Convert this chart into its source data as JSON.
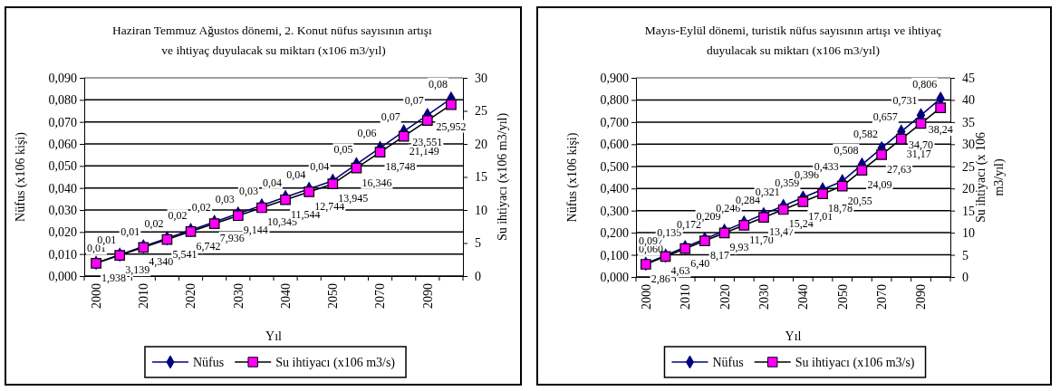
{
  "chart_data": [
    {
      "type": "line",
      "title": "Haziran Temmuz Ağustos  dönemi, 2. Konut  nüfus sayısının artışı  ve ihtiyaç duyulacak su miktarı (x106 m3/yıl)",
      "xlabel": "Yıl",
      "ylabel": "Nüfus (x106 kişi)",
      "y2label": "Su ihtiyacı (x106 m3/yıl)",
      "categories": [
        "2000",
        null,
        "2010",
        null,
        "2020",
        null,
        "2030",
        null,
        "2040",
        null,
        "2050",
        null,
        "2070",
        null,
        "2090",
        null
      ],
      "series": [
        {
          "name": "Nüfus",
          "color": "#000080",
          "marker": "diamond",
          "values": [
            0.006,
            0.0097,
            0.0135,
            0.0172,
            0.0209,
            0.0246,
            0.0284,
            0.0321,
            0.0359,
            0.0396,
            0.0433,
            0.0508,
            0.0582,
            0.0657,
            0.0731,
            0.0806
          ],
          "value_labels": [
            "0,01",
            "0,01",
            "0,01",
            "0,02",
            "0,02",
            "0,02",
            "0,03",
            "0,03",
            "0,04",
            "0,04",
            "0,04",
            "0,05",
            "0,06",
            "0,07",
            "0,07",
            "0,08"
          ]
        },
        {
          "name": "Su ihtiyacı (x106 m3/s)",
          "color": "#ff00ff",
          "marker": "square",
          "axis": "y2",
          "values": [
            1.938,
            3.139,
            4.34,
            5.541,
            6.742,
            7.936,
            9.144,
            10.345,
            11.544,
            12.744,
            13.945,
            16.346,
            18.748,
            21.149,
            23.551,
            25.952
          ],
          "value_labels": [
            "1,938",
            "3,139",
            "4,340",
            "5,541",
            "6,742",
            "7,936",
            "9,144",
            "10,345",
            "11,544",
            "12,744",
            "13,945",
            "16,346",
            "18,748",
            "21,149",
            "23,551",
            "25,952"
          ]
        }
      ],
      "ylim": [
        0,
        0.09
      ],
      "yticks": [
        {
          "value": 0,
          "label": "0,000"
        },
        {
          "value": 0.01,
          "label": "0,010"
        },
        {
          "value": 0.02,
          "label": "0,020"
        },
        {
          "value": 0.03,
          "label": "0,030"
        },
        {
          "value": 0.04,
          "label": "0,040"
        },
        {
          "value": 0.05,
          "label": "0,050"
        },
        {
          "value": 0.06,
          "label": "0,060"
        },
        {
          "value": 0.07,
          "label": "0,070"
        },
        {
          "value": 0.08,
          "label": "0,080"
        },
        {
          "value": 0.09,
          "label": "0,090"
        }
      ],
      "y2lim": [
        0,
        30
      ],
      "y2ticks": [
        0,
        5,
        10,
        15,
        20,
        25,
        30
      ],
      "grid": "y",
      "legend": "bottom"
    },
    {
      "type": "line",
      "title": "Mayıs-Eylül dönemi, turistik nüfus sayısının artışı  ve ihtiyaç duyulacak su miktarı (x106 m3/yıl)",
      "xlabel": "Yıl",
      "ylabel": "Nüfus (x106 kişi)",
      "y2label": "Su ihtiyacı (x 106 m3/yıl)",
      "categories": [
        "2000",
        null,
        "2010",
        null,
        "2020",
        null,
        "2030",
        null,
        "2040",
        null,
        "2050",
        null,
        "2070",
        null,
        "2090",
        null
      ],
      "series": [
        {
          "name": "Nüfus",
          "color": "#000080",
          "marker": "diamond",
          "values": [
            0.06,
            0.097,
            0.135,
            0.172,
            0.209,
            0.246,
            0.284,
            0.321,
            0.359,
            0.396,
            0.433,
            0.508,
            0.582,
            0.657,
            0.731,
            0.806
          ],
          "value_labels": [
            "0,060",
            "0,097",
            "0,135",
            "0,172",
            "0,209",
            "0,246",
            "0,284",
            "0,321",
            "0,359",
            "0,396",
            "0,433",
            "0,508",
            "0,582",
            "0,657",
            "0,731",
            "0,806"
          ]
        },
        {
          "name": "Su ihtiyacı (x106 m3/s)",
          "color": "#ff00ff",
          "marker": "square",
          "axis": "y2",
          "values": [
            2.86,
            4.63,
            6.4,
            8.17,
            9.93,
            11.7,
            13.47,
            15.24,
            17.01,
            18.78,
            20.55,
            24.09,
            27.63,
            31.17,
            34.7,
            38.24
          ],
          "value_labels": [
            "2,86",
            "4,63",
            "6,40",
            "8,17",
            "9,93",
            "11,70",
            "13,47",
            "15,24",
            "17,01",
            "18,78",
            "20,55",
            "24,09",
            "27,63",
            "31,17",
            "34,70",
            "38,24"
          ]
        }
      ],
      "ylim": [
        0,
        0.9
      ],
      "yticks": [
        {
          "value": 0,
          "label": "0,000"
        },
        {
          "value": 0.1,
          "label": "0,100"
        },
        {
          "value": 0.2,
          "label": "0,200"
        },
        {
          "value": 0.3,
          "label": "0,300"
        },
        {
          "value": 0.4,
          "label": "0,400"
        },
        {
          "value": 0.5,
          "label": "0,500"
        },
        {
          "value": 0.6,
          "label": "0,600"
        },
        {
          "value": 0.7,
          "label": "0,700"
        },
        {
          "value": 0.8,
          "label": "0,800"
        },
        {
          "value": 0.9,
          "label": "0,900"
        }
      ],
      "y2lim": [
        0,
        45
      ],
      "y2ticks": [
        0,
        5,
        10,
        15,
        20,
        25,
        30,
        35,
        40,
        45
      ],
      "grid": "y",
      "legend": "bottom"
    }
  ]
}
